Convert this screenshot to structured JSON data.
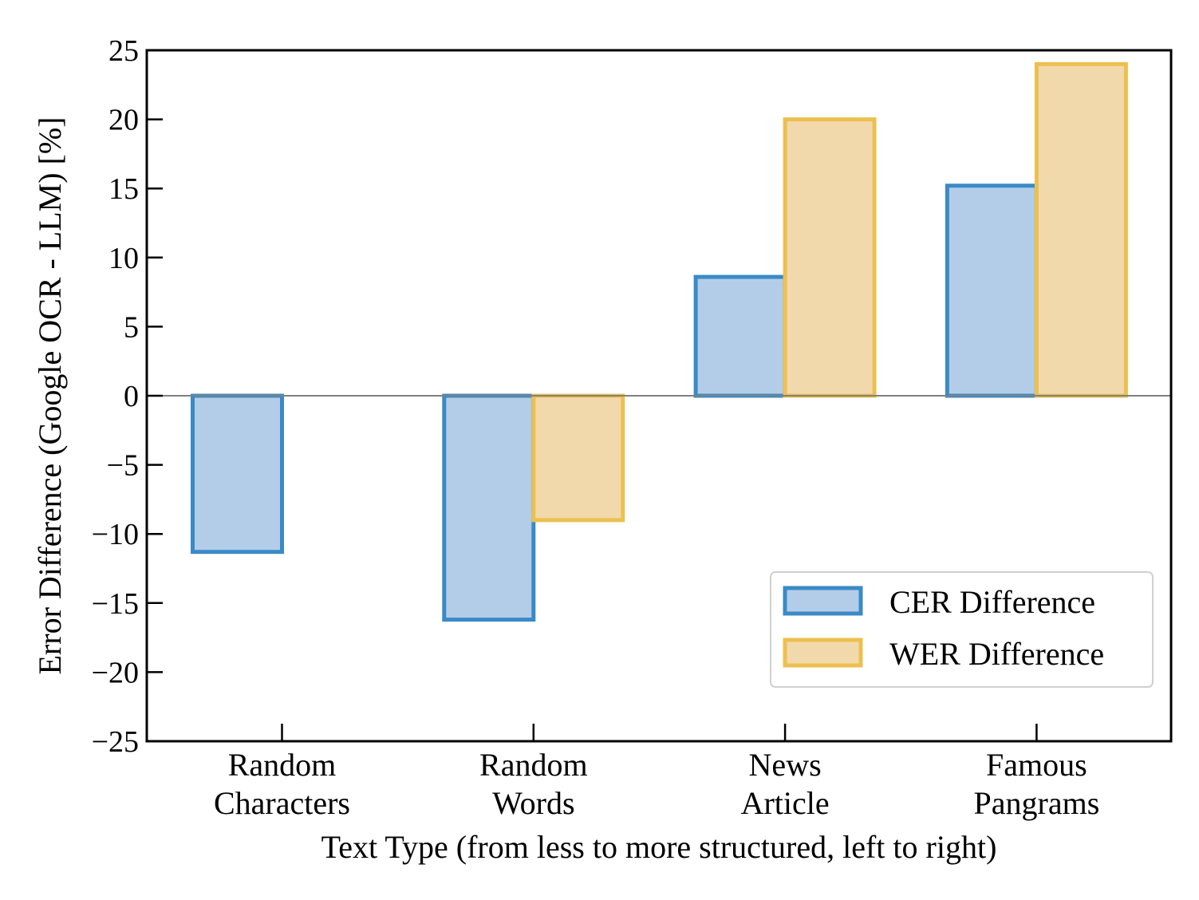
{
  "chart_data": {
    "type": "bar",
    "title": "",
    "xlabel": "Text Type (from less to more structured, left to right)",
    "ylabel": "Error Difference (Google OCR - LLM) [%]",
    "categories": [
      [
        "Random",
        "Characters"
      ],
      [
        "Random",
        "Words"
      ],
      [
        "News",
        "Article"
      ],
      [
        "Famous",
        "Pangrams"
      ]
    ],
    "series": [
      {
        "name": "CER Difference",
        "values": [
          -11.3,
          -16.2,
          8.6,
          15.2
        ],
        "fill": "#b3cde9",
        "edge": "#3a8ac6"
      },
      {
        "name": "WER Difference",
        "values": [
          null,
          -9.0,
          20.0,
          24.0
        ],
        "fill": "#f2d9ac",
        "edge": "#ecc050"
      }
    ],
    "ylim": [
      -25,
      25
    ],
    "yticks": [
      -25,
      -20,
      -15,
      -10,
      -5,
      0,
      5,
      10,
      15,
      20,
      25
    ],
    "ytick_labels": [
      "−25",
      "−20",
      "−15",
      "−10",
      "−5",
      "0",
      "5",
      "10",
      "15",
      "20",
      "25"
    ],
    "zero_line": true,
    "grid": false,
    "legend_position": "lower-right"
  }
}
